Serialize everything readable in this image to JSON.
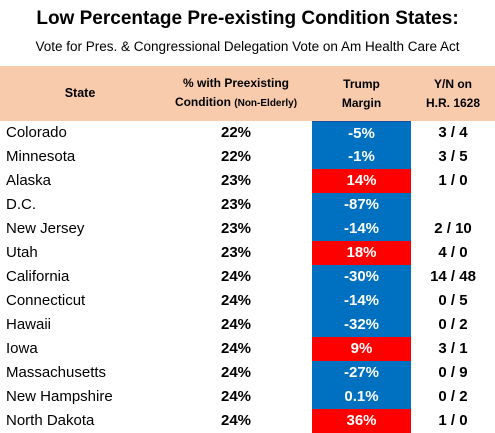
{
  "title": "Low Percentage Pre-existing Condition States",
  "title_suffix": ":",
  "subtitle": "Vote for Pres. & Congressional Delegation Vote on Am Health Care Act",
  "headers": {
    "state": "State",
    "pct_line1": "% with Preexisting",
    "pct_line2": "Condition",
    "pct_line2_small": "(Non-Elderly)",
    "trump_line1": "Trump",
    "trump_line2": "Margin",
    "yn_line1": "Y/N on",
    "yn_line2": "H.R. 1628"
  },
  "colors": {
    "header_bg": "#f8cbad",
    "dem": "#0070c0",
    "rep": "#ff0000"
  },
  "rows": [
    {
      "state": "Colorado",
      "pct": "22%",
      "margin": "-5%",
      "party": "dem",
      "yn": "3 / 4"
    },
    {
      "state": "Minnesota",
      "pct": "22%",
      "margin": "-1%",
      "party": "dem",
      "yn": "3 / 5"
    },
    {
      "state": "Alaska",
      "pct": "23%",
      "margin": "14%",
      "party": "rep",
      "yn": "1 / 0"
    },
    {
      "state": "D.C.",
      "pct": "23%",
      "margin": "-87%",
      "party": "dem",
      "yn": ""
    },
    {
      "state": "New Jersey",
      "pct": "23%",
      "margin": "-14%",
      "party": "dem",
      "yn": "2 / 10"
    },
    {
      "state": "Utah",
      "pct": "23%",
      "margin": "18%",
      "party": "rep",
      "yn": "4 / 0"
    },
    {
      "state": "California",
      "pct": "24%",
      "margin": "-30%",
      "party": "dem",
      "yn": "14 / 48"
    },
    {
      "state": "Connecticut",
      "pct": "24%",
      "margin": "-14%",
      "party": "dem",
      "yn": "0 / 5"
    },
    {
      "state": "Hawaii",
      "pct": "24%",
      "margin": "-32%",
      "party": "dem",
      "yn": "0 / 2"
    },
    {
      "state": "Iowa",
      "pct": "24%",
      "margin": "9%",
      "party": "rep",
      "yn": "3 / 1"
    },
    {
      "state": "Massachusetts",
      "pct": "24%",
      "margin": "-27%",
      "party": "dem",
      "yn": "0 / 9"
    },
    {
      "state": "New Hampshire",
      "pct": "24%",
      "margin": "0.1%",
      "party": "dem",
      "yn": "0 / 2"
    },
    {
      "state": "North Dakota",
      "pct": "24%",
      "margin": "36%",
      "party": "rep",
      "yn": "1 / 0"
    }
  ]
}
